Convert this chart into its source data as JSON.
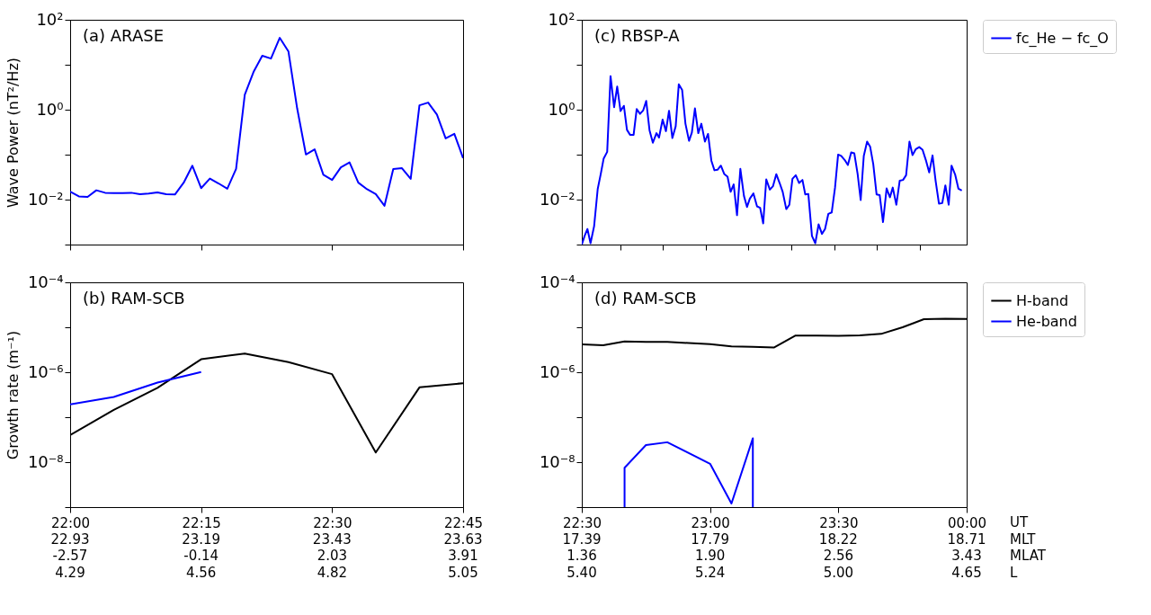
{
  "chart_data": [
    {
      "type": "line",
      "title": "(a) ARASE",
      "ylabel": "Wave Power (nT²/Hz)",
      "log": "y",
      "grid": false,
      "legend": false,
      "tick_labels": "y",
      "xlim": [
        22,
        22.75
      ],
      "xticks": [
        22,
        22.25,
        22.5,
        22.75
      ],
      "ylim": [
        0.001,
        100
      ],
      "yticks": [
        {
          "value": 100,
          "label": "10²"
        },
        {
          "value": 10,
          "label": null
        },
        {
          "value": 1,
          "label": "10⁰"
        },
        {
          "value": 0.1,
          "label": null
        },
        {
          "value": 0.01,
          "label": "10⁻²"
        },
        {
          "value": 0.001,
          "label": null
        }
      ],
      "series": [
        {
          "color": "#0000ff",
          "x": [
            22,
            22.0167,
            22.0333,
            22.05,
            22.0667,
            22.0833,
            22.1,
            22.1167,
            22.1333,
            22.15,
            22.1667,
            22.1833,
            22.2,
            22.2167,
            22.2333,
            22.25,
            22.2667,
            22.2833,
            22.3,
            22.3167,
            22.3333,
            22.35,
            22.3667,
            22.3833,
            22.4,
            22.4167,
            22.4333,
            22.45,
            22.4667,
            22.4833,
            22.5,
            22.5167,
            22.5333,
            22.55,
            22.5667,
            22.5833,
            22.6,
            22.6167,
            22.6333,
            22.65,
            22.6667,
            22.6833,
            22.7,
            22.7167,
            22.7333,
            22.75
          ],
          "values": [
            0.015,
            0.0118,
            0.0115,
            0.0161,
            0.0142,
            0.014,
            0.014,
            0.0142,
            0.0132,
            0.0136,
            0.0144,
            0.0132,
            0.013,
            0.0238,
            0.0568,
            0.018,
            0.0294,
            0.0229,
            0.0175,
            0.048,
            2.16,
            6.9,
            15.8,
            13.7,
            39.7,
            19.7,
            1.07,
            0.101,
            0.131,
            0.0357,
            0.0274,
            0.0521,
            0.0671,
            0.0238,
            0.017,
            0.0132,
            0.0073,
            0.048,
            0.05,
            0.029,
            1.25,
            1.44,
            0.78,
            0.23,
            0.29,
            0.084
          ]
        }
      ]
    },
    {
      "type": "line",
      "title": "(c) RBSP-A",
      "log": "y",
      "grid": false,
      "legend": "right",
      "tick_labels": "y",
      "xlim": [
        22.5,
        24
      ],
      "xticks": [
        {
          "value": 22.65,
          "label": null
        },
        {
          "value": 22.8167,
          "label": null
        },
        {
          "value": 22.9833,
          "label": null
        },
        {
          "value": 23.15,
          "label": null
        },
        {
          "value": 23.3167,
          "label": null
        },
        {
          "value": 23.4833,
          "label": null
        },
        {
          "value": 23.65,
          "label": null
        },
        {
          "value": 23.8167,
          "label": null
        }
      ],
      "ylim": [
        0.001,
        100
      ],
      "yticks": [
        {
          "value": 100,
          "label": "10²"
        },
        {
          "value": 10,
          "label": null
        },
        {
          "value": 1,
          "label": "10⁰"
        },
        {
          "value": 0.1,
          "label": null
        },
        {
          "value": 0.01,
          "label": "10⁻²"
        },
        {
          "value": 0.001,
          "label": null
        }
      ],
      "series": [
        {
          "name": "fc_He − fc_O",
          "color": "#0000ff",
          "x": [
            22.5,
            22.511,
            22.522,
            22.534,
            22.548,
            22.562,
            22.574,
            22.585,
            22.599,
            22.612,
            22.626,
            22.638,
            22.651,
            22.664,
            22.676,
            22.688,
            22.702,
            22.714,
            22.727,
            22.739,
            22.751,
            22.764,
            22.777,
            22.791,
            22.801,
            22.815,
            22.828,
            22.84,
            22.853,
            22.866,
            22.878,
            22.891,
            22.904,
            22.918,
            22.929,
            22.941,
            22.954,
            22.966,
            22.98,
            22.992,
            23.005,
            23.017,
            23.029,
            23.042,
            23.055,
            23.068,
            23.08,
            23.092,
            23.105,
            23.118,
            23.132,
            23.144,
            23.155,
            23.169,
            23.183,
            23.195,
            23.207,
            23.219,
            23.233,
            23.245,
            23.258,
            23.271,
            23.283,
            23.297,
            23.309,
            23.321,
            23.334,
            23.347,
            23.36,
            23.371,
            23.383,
            23.397,
            23.41,
            23.423,
            23.436,
            23.448,
            23.461,
            23.474,
            23.487,
            23.499,
            23.511,
            23.525,
            23.537,
            23.55,
            23.562,
            23.575,
            23.587,
            23.599,
            23.612,
            23.624,
            23.636,
            23.649,
            23.661,
            23.674,
            23.688,
            23.701,
            23.712,
            23.726,
            23.739,
            23.752,
            23.764,
            23.777,
            23.789,
            23.802,
            23.815,
            23.828,
            23.841,
            23.854,
            23.867,
            23.879,
            23.892,
            23.905,
            23.917,
            23.93,
            23.941,
            23.955,
            23.968,
            23.981
          ],
          "values": [
            0.001,
            0.00156,
            0.00222,
            0.00107,
            0.00256,
            0.0172,
            0.0373,
            0.081,
            0.1155,
            5.59,
            1.135,
            3.27,
            0.932,
            1.22,
            0.357,
            0.277,
            0.277,
            1.03,
            0.809,
            0.958,
            1.57,
            0.347,
            0.184,
            0.301,
            0.24,
            0.602,
            0.333,
            0.945,
            0.234,
            0.429,
            3.66,
            2.76,
            0.487,
            0.203,
            0.31,
            1.07,
            0.301,
            0.487,
            0.195,
            0.289,
            0.0735,
            0.0449,
            0.0462,
            0.057,
            0.0373,
            0.0324,
            0.0149,
            0.0218,
            0.0045,
            0.0482,
            0.0121,
            0.00687,
            0.0105,
            0.0137,
            0.00707,
            0.00659,
            0.00295,
            0.0282,
            0.0167,
            0.0198,
            0.0368,
            0.0234,
            0.0149,
            0.00614,
            0.00769,
            0.029,
            0.0348,
            0.0234,
            0.0274,
            0.013,
            0.0133,
            0.00156,
            0.00107,
            0.00282,
            0.00173,
            0.00222,
            0.00483,
            0.00518,
            0.0185,
            0.1003,
            0.0935,
            0.0756,
            0.0587,
            0.112,
            0.1076,
            0.0373,
            0.00977,
            0.0935,
            0.195,
            0.149,
            0.0612,
            0.013,
            0.0126,
            0.00316,
            0.0177,
            0.0113,
            0.0185,
            0.00769,
            0.0262,
            0.0274,
            0.0348,
            0.195,
            0.0975,
            0.133,
            0.147,
            0.129,
            0.0756,
            0.0401,
            0.0961,
            0.0262,
            0.00814,
            0.00837,
            0.0207,
            0.00769,
            0.057,
            0.0363,
            0.0174,
            0.016
          ]
        }
      ]
    },
    {
      "type": "line",
      "title": "(b) RAM-SCB",
      "ylabel": "Growth rate (m⁻¹)",
      "log": "y",
      "grid": false,
      "legend": false,
      "xlim": [
        22,
        22.75
      ],
      "xticks": [
        {
          "value": 22,
          "label": "22:00"
        },
        {
          "value": 22.25,
          "label": "22:15"
        },
        {
          "value": 22.5,
          "label": "22:30"
        },
        {
          "value": 22.75,
          "label": "22:45"
        }
      ],
      "annotations": [
        "22.93",
        "-2.57",
        "4.29",
        "23.19",
        "-0.14",
        "4.56",
        "23.43",
        "2.03",
        "4.82",
        "23.63",
        "3.91",
        "5.05"
      ],
      "ylim": [
        1e-09,
        0.0001
      ],
      "yticks": [
        {
          "value": 0.0001,
          "label": "10⁻⁴"
        },
        {
          "value": 1e-05,
          "label": null
        },
        {
          "value": 1e-06,
          "label": "10⁻⁶"
        },
        {
          "value": 1e-07,
          "label": null
        },
        {
          "value": 1e-08,
          "label": "10⁻⁸"
        },
        {
          "value": 1e-09,
          "label": null
        }
      ],
      "series": [
        {
          "color": "#000000",
          "x": [
            22,
            22.0833,
            22.1667,
            22.25,
            22.3333,
            22.4167,
            22.5,
            22.5833,
            22.6667,
            22.75
          ],
          "values": [
            4e-08,
            1.46e-07,
            4.5e-07,
            1.94e-06,
            2.61e-06,
            1.68e-06,
            9.06e-07,
            1.64e-08,
            4.6e-07,
            5.7e-07
          ]
        },
        {
          "color": "#0000ff",
          "x": [
            22,
            22.0833,
            22.1667,
            22.25
          ],
          "values": [
            1.93e-07,
            2.82e-07,
            5.9e-07,
            1.01e-06
          ]
        }
      ]
    },
    {
      "type": "line",
      "title": "(d) RAM-SCB",
      "log": "y",
      "grid": false,
      "legend": "right",
      "annotations": [
        "17.39",
        "1.36",
        "5.40",
        "17.79",
        "1.90",
        "5.24",
        "18.22",
        "2.56",
        "5.00",
        "18.71",
        "3.43",
        "4.65",
        "UT",
        "MLT",
        "MLAT",
        "L"
      ],
      "xlim": [
        22.5,
        24
      ],
      "xticks": [
        {
          "value": 22.5,
          "label": "22:30"
        },
        {
          "value": 23,
          "label": "23:00"
        },
        {
          "value": 23.5,
          "label": "23:30"
        },
        {
          "value": 24,
          "label": "00:00"
        }
      ],
      "ylim": [
        1e-09,
        0.0001
      ],
      "yticks": [
        {
          "value": 0.0001,
          "label": "10⁻⁴"
        },
        {
          "value": 1e-05,
          "label": null
        },
        {
          "value": 1e-06,
          "label": "10⁻⁶"
        },
        {
          "value": 1e-07,
          "label": null
        },
        {
          "value": 1e-08,
          "label": "10⁻⁸"
        },
        {
          "value": 1e-09,
          "label": null
        }
      ],
      "series": [
        {
          "name": "H-band",
          "color": "#000000",
          "x": [
            22.5,
            22.5833,
            22.6667,
            22.75,
            22.8333,
            22.9167,
            23,
            23.0833,
            23.1667,
            23.25,
            23.3333,
            23.4167,
            23.5,
            23.5833,
            23.6667,
            23.75,
            23.8333,
            23.9167,
            24
          ],
          "values": [
            4.17e-06,
            3.99e-06,
            4.86e-06,
            4.73e-06,
            4.73e-06,
            4.47e-06,
            4.22e-06,
            3.77e-06,
            3.67e-06,
            3.56e-06,
            6.55e-06,
            6.55e-06,
            6.45e-06,
            6.64e-06,
            7.13e-06,
            1e-05,
            1.51e-05,
            1.55e-05,
            1.53e-05
          ]
        },
        {
          "name": "He-band",
          "color": "#0000ff",
          "x": [
            22.6667,
            22.6667,
            22.75,
            22.8333,
            23,
            23.0833,
            23.1667,
            23.1667
          ],
          "values": [
            1e-09,
            7.5e-09,
            2.4e-08,
            2.77e-08,
            9.2e-09,
            1.2e-09,
            3.4e-08,
            1e-09
          ]
        }
      ]
    }
  ]
}
